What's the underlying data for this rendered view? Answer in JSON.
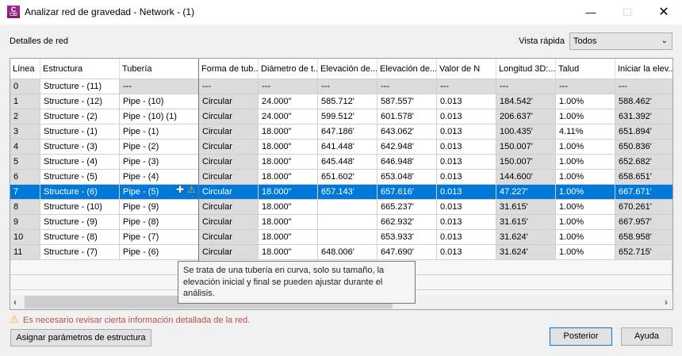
{
  "window": {
    "title": "Analizar red de gravedad - Network - (1)",
    "app_icon": "C3D"
  },
  "section_label": "Detalles de red",
  "quick_view": {
    "label": "Vista rápida",
    "value": "Todos"
  },
  "columns": [
    "Línea",
    "Estructura",
    "Tubería",
    "Forma de tub...",
    "Diámetro de t...",
    "Elevación de...",
    "Elevación de...",
    "Valor de N",
    "Longitud 3D:...",
    "Talud",
    "Iniciar la elev..."
  ],
  "rows": [
    [
      "0",
      "Structure - (11)",
      "---",
      "---",
      "---",
      "---",
      "---",
      "---",
      "---",
      "---",
      "---"
    ],
    [
      "1",
      "Structure - (12)",
      "Pipe - (10)",
      "Circular",
      "24.000\"",
      "585.712'",
      "587.557'",
      "0.013",
      "184.542'",
      "1.00%",
      "588.462'"
    ],
    [
      "2",
      "Structure - (2)",
      "Pipe - (10) (1)",
      "Circular",
      "24.000\"",
      "599.512'",
      "601.578'",
      "0.013",
      "206.637'",
      "1.00%",
      "631.392'"
    ],
    [
      "3",
      "Structure - (1)",
      "Pipe - (1)",
      "Circular",
      "18.000\"",
      "647.186'",
      "643.062'",
      "0.013",
      "100.435'",
      "4.11%",
      "651.894'"
    ],
    [
      "4",
      "Structure - (3)",
      "Pipe - (2)",
      "Circular",
      "18.000\"",
      "641.448'",
      "642.948'",
      "0.013",
      "150.007'",
      "1.00%",
      "650.836'"
    ],
    [
      "5",
      "Structure - (4)",
      "Pipe - (3)",
      "Circular",
      "18.000\"",
      "645.448'",
      "646.948'",
      "0.013",
      "150.007'",
      "1.00%",
      "652.682'"
    ],
    [
      "6",
      "Structure - (5)",
      "Pipe - (4)",
      "Circular",
      "18.000\"",
      "651.602'",
      "653.048'",
      "0.013",
      "144.600'",
      "1.00%",
      "658.651'"
    ],
    [
      "7",
      "Structure - (6)",
      "Pipe - (5)",
      "Circular",
      "18.000\"",
      "657.143'",
      "657.616'",
      "0.013",
      "47.227'",
      "1.00%",
      "667.671'"
    ],
    [
      "8",
      "Structure - (10)",
      "Pipe - (9)",
      "Circular",
      "18.000\"",
      "",
      "665.237'",
      "0.013",
      "31.615'",
      "1.00%",
      "670.261'"
    ],
    [
      "9",
      "Structure - (9)",
      "Pipe - (8)",
      "Circular",
      "18.000\"",
      "",
      "662.932'",
      "0.013",
      "31.615'",
      "1.00%",
      "667.957'"
    ],
    [
      "10",
      "Structure - (8)",
      "Pipe - (7)",
      "Circular",
      "18.000\"",
      "",
      "653.933'",
      "0.013",
      "31.624'",
      "1.00%",
      "658.958'"
    ],
    [
      "11",
      "Structure - (7)",
      "Pipe - (6)",
      "Circular",
      "18.000\"",
      "648.006'",
      "647.690'",
      "0.013",
      "31.624'",
      "1.00%",
      "652.715'"
    ]
  ],
  "selected_row": 7,
  "tooltip": "Se trata de una tubería en curva, solo su tamaño, la elevación inicial y final se pueden ajustar durante el análisis.",
  "warning": "Es necesario revisar cierta información detallada de la red.",
  "buttons": {
    "assign": "Asignar parámetros de estructura",
    "next": "Posterior",
    "help": "Ayuda"
  },
  "colors": {
    "selection": "#0078d7",
    "warning_text": "#c0504d",
    "warning_icon": "#f0b400"
  }
}
